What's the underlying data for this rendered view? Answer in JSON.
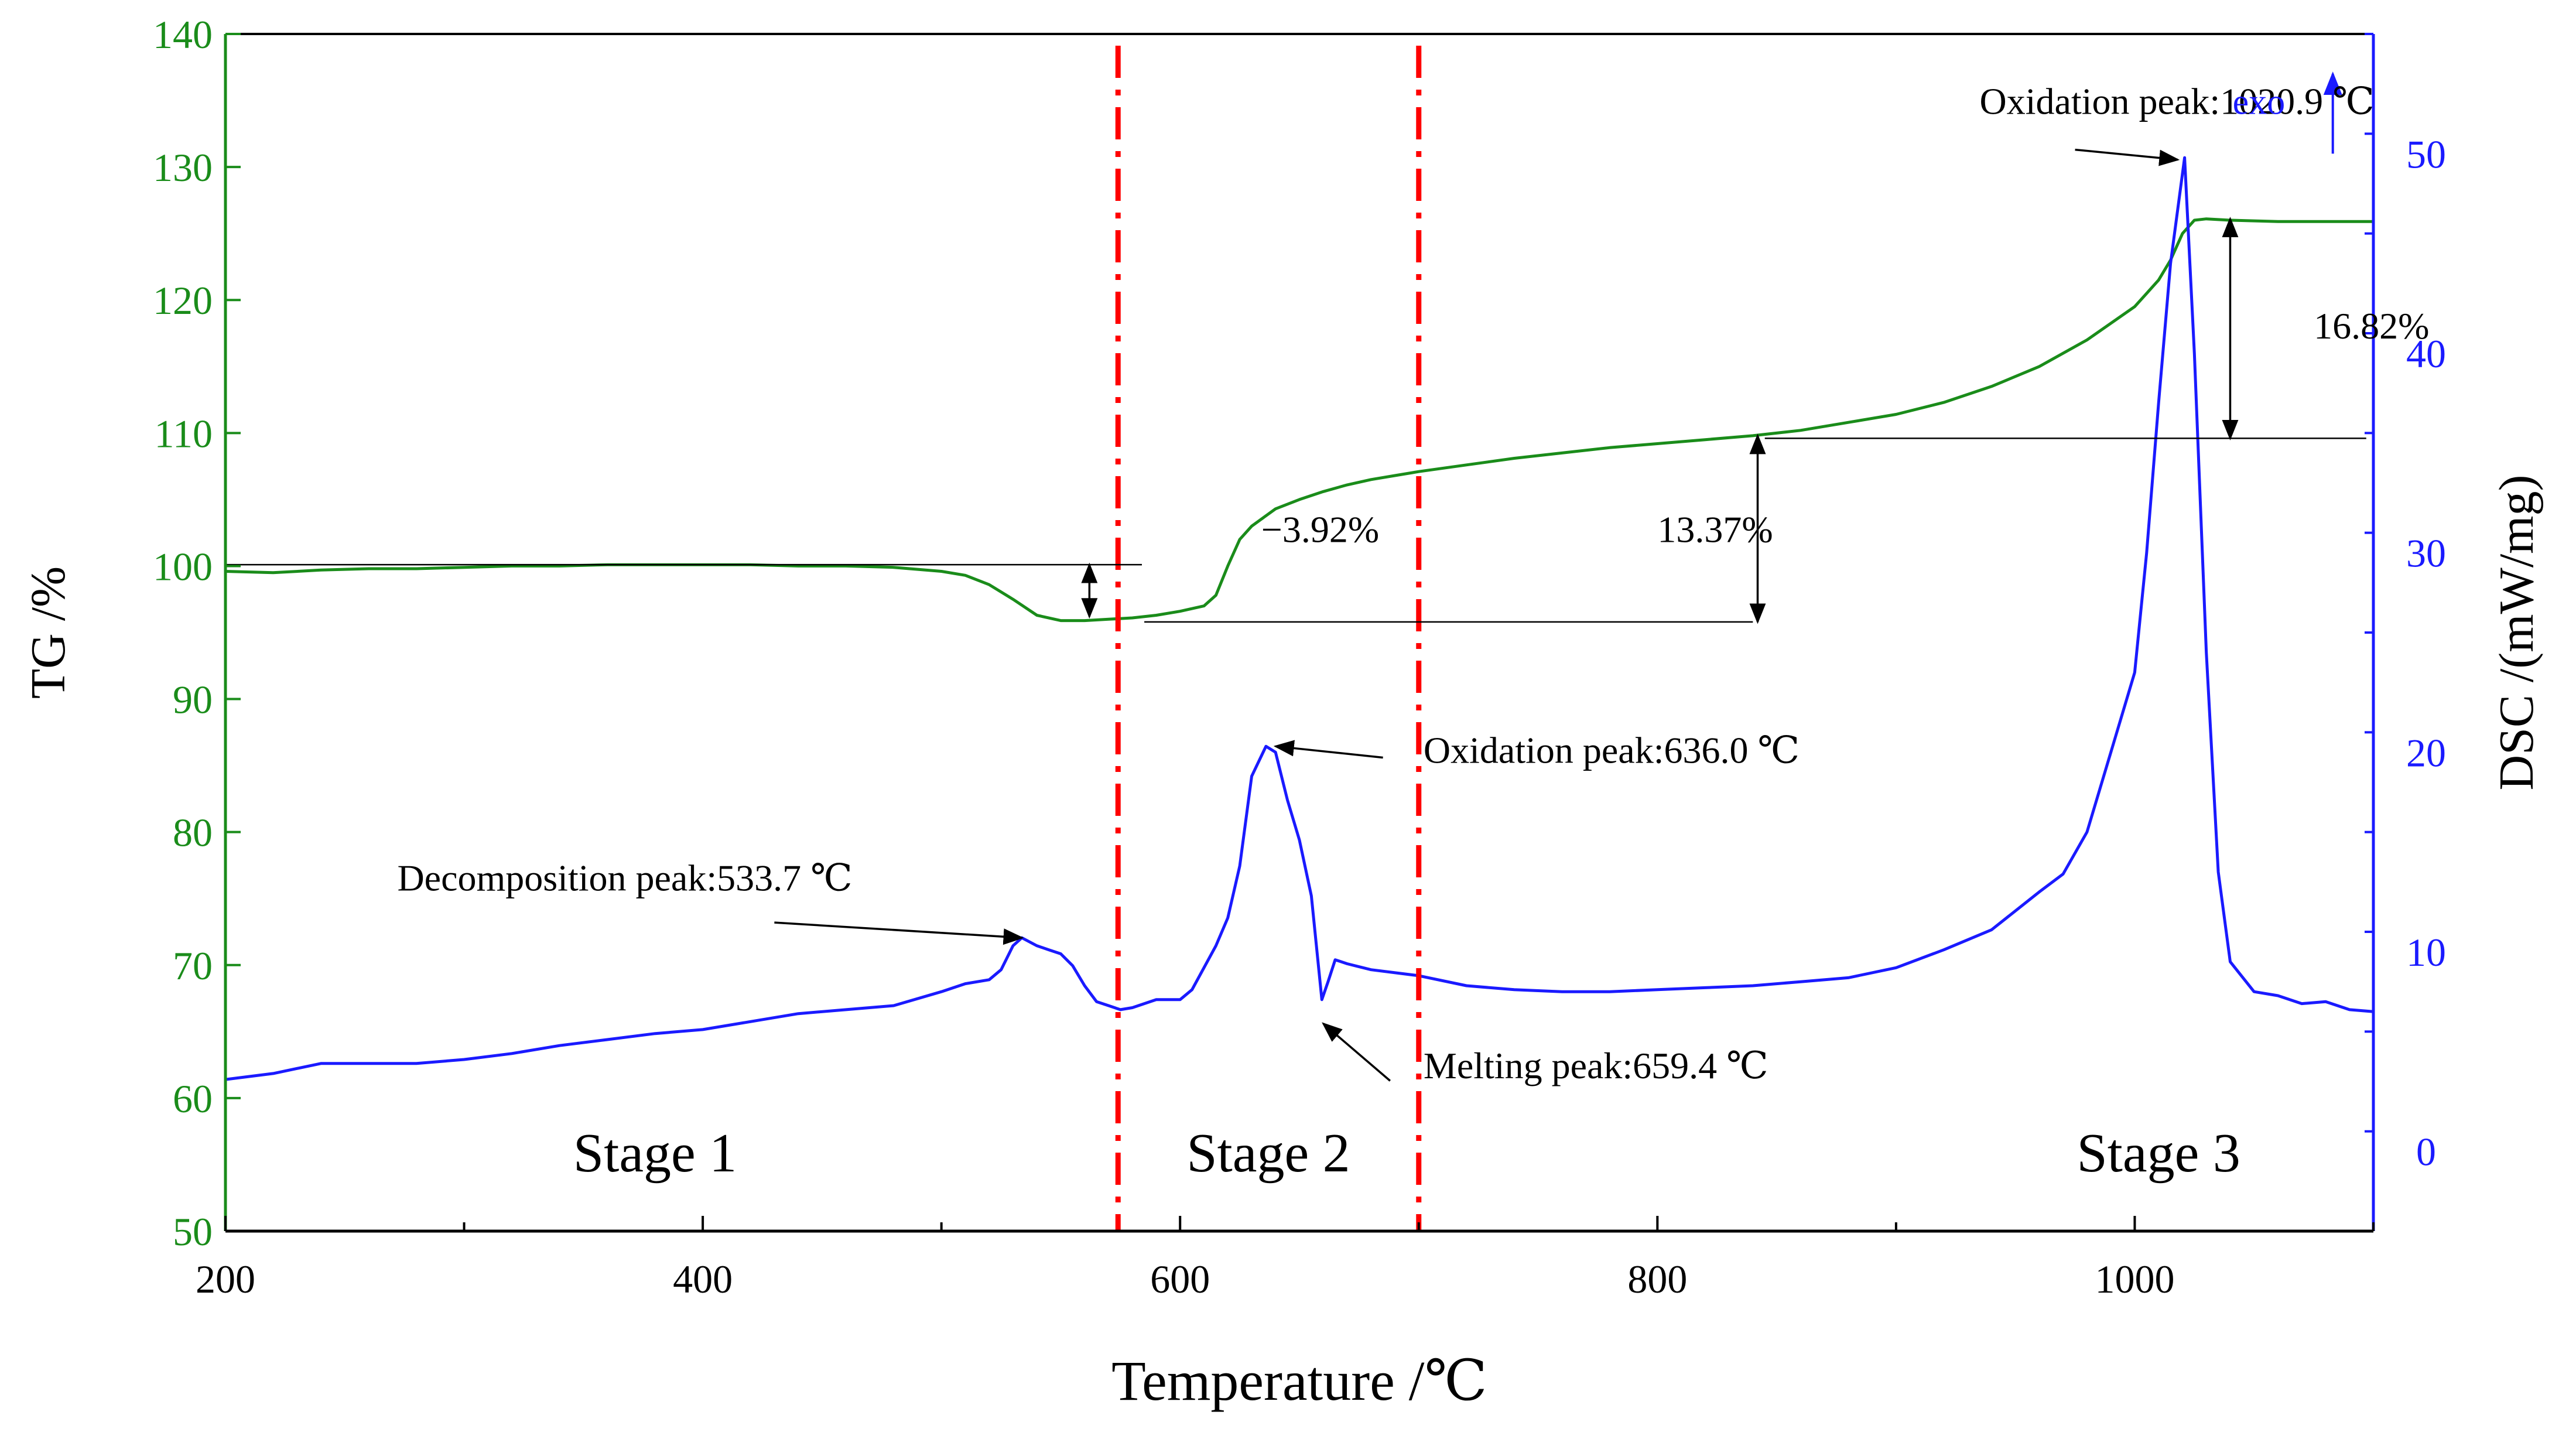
{
  "chart_data": {
    "type": "line",
    "xlabel": "Temperature /℃",
    "ylabel_left": "TG /%",
    "ylabel_right": "DSC /(mW/mg)",
    "xlim": [
      200,
      1100
    ],
    "ylim_left": [
      50,
      140
    ],
    "ylim_right": [
      -4,
      56
    ],
    "x_ticks": [
      200,
      400,
      600,
      800,
      1000
    ],
    "x_tick_labels": [
      "200",
      "400",
      "600",
      "800",
      "1000"
    ],
    "y_left_ticks": [
      50,
      60,
      70,
      80,
      90,
      100,
      110,
      120,
      130,
      140
    ],
    "y_left_tick_labels": [
      "50",
      "60",
      "70",
      "80",
      "90",
      "100",
      "110",
      "120",
      "130",
      "140"
    ],
    "y_right_ticks": [
      0,
      10,
      20,
      30,
      40,
      50
    ],
    "y_right_tick_labels": [
      "0",
      "10",
      "20",
      "30",
      "40",
      "50"
    ],
    "colors": {
      "tg": "#1a8c1a",
      "dsc": "#1a1aff",
      "stage_line": "#ff0000",
      "axis_left": "#1a8c1a",
      "axis_right": "#1a1aff",
      "annotation": "#000000"
    },
    "series": [
      {
        "name": "TG",
        "axis": "left",
        "x": [
          200,
          220,
          240,
          260,
          280,
          300,
          320,
          340,
          360,
          380,
          400,
          420,
          440,
          460,
          480,
          500,
          510,
          520,
          530,
          540,
          550,
          560,
          570,
          580,
          590,
          600,
          610,
          615,
          620,
          625,
          630,
          640,
          650,
          660,
          670,
          680,
          690,
          700,
          720,
          740,
          760,
          780,
          800,
          820,
          840,
          860,
          880,
          900,
          920,
          940,
          960,
          980,
          1000,
          1005,
          1010,
          1015,
          1020,
          1025,
          1030,
          1040,
          1060,
          1080,
          1100
        ],
        "values": [
          99.6,
          99.5,
          99.7,
          99.8,
          99.8,
          99.9,
          100.0,
          100.0,
          100.1,
          100.1,
          100.1,
          100.1,
          100.0,
          100.0,
          99.9,
          99.6,
          99.3,
          98.6,
          97.5,
          96.3,
          95.9,
          95.9,
          96.0,
          96.1,
          96.3,
          96.6,
          97.0,
          97.8,
          100.0,
          102.0,
          103.0,
          104.3,
          105.0,
          105.6,
          106.1,
          106.5,
          106.8,
          107.1,
          107.6,
          108.1,
          108.5,
          108.9,
          109.2,
          109.5,
          109.8,
          110.2,
          110.8,
          111.4,
          112.3,
          113.5,
          115.0,
          117.0,
          119.5,
          120.5,
          121.5,
          123.0,
          125.0,
          126.0,
          126.1,
          126.0,
          125.9,
          125.9,
          125.9
        ]
      },
      {
        "name": "DSC",
        "axis": "right",
        "x": [
          200,
          220,
          240,
          260,
          280,
          300,
          320,
          340,
          360,
          380,
          400,
          420,
          440,
          460,
          480,
          500,
          510,
          520,
          525,
          530,
          533.7,
          540,
          545,
          550,
          555,
          560,
          565,
          570,
          575,
          580,
          590,
          600,
          605,
          610,
          615,
          620,
          625,
          630,
          636.0,
          640,
          645,
          650,
          655,
          659.4,
          662,
          665,
          670,
          680,
          700,
          720,
          740,
          760,
          780,
          800,
          820,
          840,
          860,
          880,
          900,
          920,
          940,
          960,
          970,
          980,
          990,
          1000,
          1005,
          1010,
          1015,
          1020.9,
          1025,
          1030,
          1035,
          1040,
          1050,
          1060,
          1070,
          1080,
          1090,
          1100
        ],
        "values": [
          3.6,
          3.9,
          4.4,
          4.4,
          4.4,
          4.6,
          4.9,
          5.3,
          5.6,
          5.9,
          6.1,
          6.5,
          6.9,
          7.1,
          7.3,
          8.0,
          8.4,
          8.6,
          9.1,
          10.3,
          10.7,
          10.3,
          10.1,
          9.9,
          9.3,
          8.3,
          7.5,
          7.3,
          7.1,
          7.2,
          7.6,
          7.6,
          8.1,
          9.2,
          10.3,
          11.7,
          14.3,
          18.8,
          20.3,
          20.0,
          17.6,
          15.6,
          12.8,
          7.6,
          8.5,
          9.6,
          9.4,
          9.1,
          8.8,
          8.3,
          8.1,
          8.0,
          8.0,
          8.1,
          8.2,
          8.3,
          8.5,
          8.7,
          9.2,
          10.1,
          11.1,
          13.0,
          13.9,
          16.0,
          20.0,
          24.0,
          30.0,
          37.5,
          44.5,
          49.8,
          40.0,
          25.0,
          14.0,
          9.5,
          8.0,
          7.8,
          7.4,
          7.5,
          7.1,
          7.0
        ]
      }
    ],
    "stage_lines_x": [
      574,
      700
    ],
    "stage_labels": [
      {
        "text": "Stage 1",
        "x": 380,
        "y_left": 54.5
      },
      {
        "text": "Stage 2",
        "x": 637,
        "y_left": 54.5
      },
      {
        "text": "Stage 3",
        "x": 1010,
        "y_left": 54.5
      }
    ],
    "peak_annotations": [
      {
        "text": "Decomposition peak:533.7 ℃",
        "tx": 272,
        "ty_left": 75.6,
        "ax_from": 430,
        "ay_from": 73.2,
        "ax_to": 533.7,
        "ay_right": 10.7
      },
      {
        "text": "Oxidation peak:636.0 ℃",
        "tx": 702,
        "ty_left": 85.2,
        "ax_from": 685,
        "ay_from": 85.6,
        "ax_to": 640,
        "ay_right": 20.3
      },
      {
        "text": "Melting peak:659.4 ℃",
        "tx": 702,
        "ty_left": 61.5,
        "ax_from": 688,
        "ay_from": 61.3,
        "ax_to": 660,
        "ay_right": 6.4
      },
      {
        "text": "Oxidation peak:1020.9 ℃",
        "tx": 935,
        "ty_left": 134.0,
        "ax_from": 975,
        "ay_from": 131.3,
        "ax_to": 1018,
        "ay_right": 49.7
      }
    ],
    "percent_annotations": [
      {
        "text": "−3.92%",
        "tx": 634,
        "ty_left": 101.8,
        "ax": 562,
        "y_top": 100.1,
        "y_bottom": 96.2,
        "lines": [
          {
            "x1": 200,
            "x2": 584,
            "y": 100.1
          }
        ]
      },
      {
        "text": "13.37%",
        "tx": 800,
        "ty_left": 101.8,
        "ax": 842,
        "y_top": 109.8,
        "y_bottom": 95.8,
        "lines": [
          {
            "x1": 585,
            "x2": 840,
            "y": 95.8
          }
        ]
      },
      {
        "text": "16.82%",
        "tx": 1075,
        "ty_left": 117.1,
        "ax": 1040,
        "y_top": 126.1,
        "y_bottom": 109.6,
        "lines": [
          {
            "x1": 845,
            "x2": 1097,
            "y": 109.6
          }
        ]
      }
    ],
    "exo_label": "exo",
    "exo_arrow": {
      "x": 1083,
      "y_from_right": 50.0,
      "y_to_right": 54.0
    }
  }
}
